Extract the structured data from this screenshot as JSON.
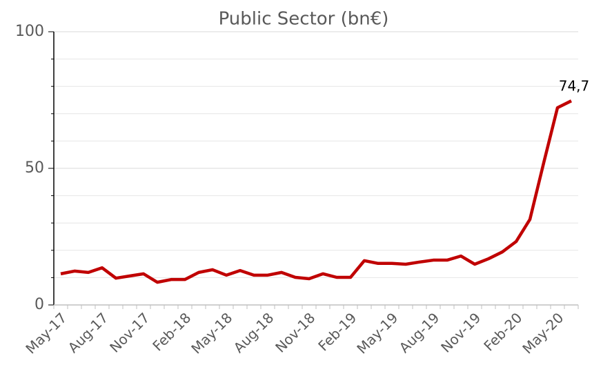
{
  "chart_data": {
    "type": "line",
    "title": "Public Sector (bn€)",
    "categories": [
      "May-17",
      null,
      null,
      "Aug-17",
      null,
      null,
      "Nov-17",
      null,
      null,
      "Feb-18",
      null,
      null,
      "May-18",
      null,
      null,
      "Aug-18",
      null,
      null,
      "Nov-18",
      null,
      null,
      "Feb-19",
      null,
      null,
      "May-19",
      null,
      null,
      "Aug-19",
      null,
      null,
      "Nov-19",
      null,
      null,
      "Feb-20",
      null,
      null,
      "May-20",
      null
    ],
    "series": [
      {
        "name": "Public Sector",
        "color": "#c00000",
        "values": [
          11.4,
          12.4,
          11.9,
          13.6,
          9.8,
          10.6,
          11.4,
          8.3,
          9.3,
          9.3,
          11.9,
          12.9,
          10.9,
          12.6,
          10.9,
          10.9,
          11.9,
          10.1,
          9.6,
          11.4,
          10.1,
          10.1,
          16.2,
          15.2,
          15.2,
          14.9,
          15.7,
          16.4,
          16.4,
          17.9,
          14.9,
          16.9,
          19.4,
          23.2,
          31.3,
          52,
          72.2,
          74.7
        ],
        "value_labels": {
          "37": "74,7"
        }
      }
    ],
    "ylim": [
      0,
      100
    ],
    "yticks": [
      0,
      50,
      100
    ],
    "minor_yticks": [
      10,
      20,
      30,
      40,
      60,
      70,
      80,
      90
    ],
    "grid": true
  }
}
